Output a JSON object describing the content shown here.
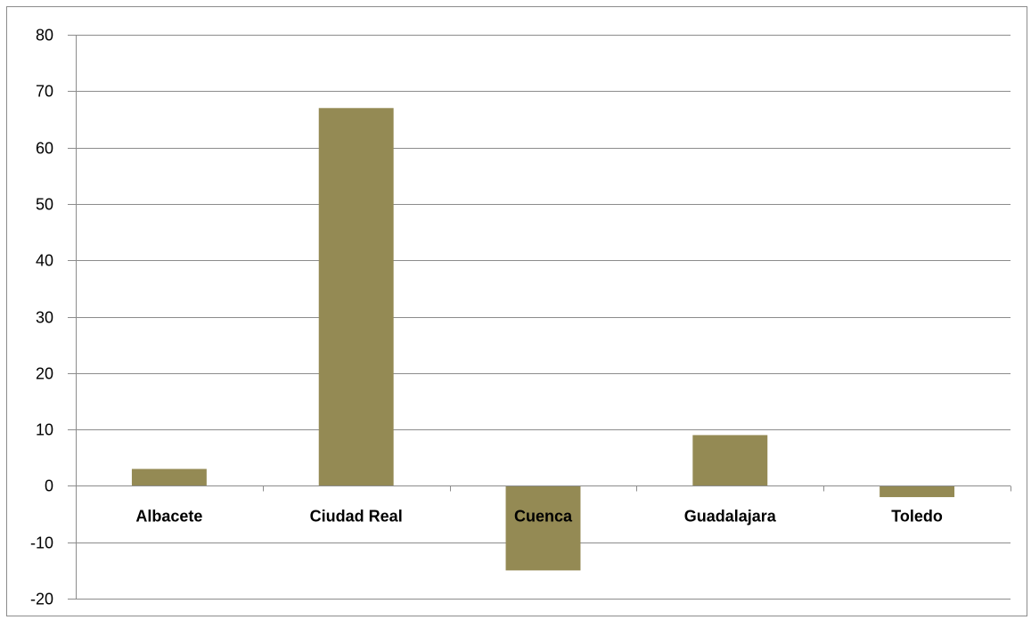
{
  "chart_data": {
    "type": "bar",
    "categories": [
      "Albacete",
      "Ciudad Real",
      "Cuenca",
      "Guadalajara",
      "Toledo"
    ],
    "values": [
      3,
      67,
      -15,
      9,
      -2
    ],
    "ylim": [
      -20,
      80
    ],
    "yticks": [
      80,
      70,
      60,
      50,
      40,
      30,
      20,
      10,
      0,
      -10,
      -20
    ],
    "grid": true,
    "legend": "none",
    "title": "",
    "xlabel": "",
    "ylabel": ""
  },
  "colors": {
    "bar": "#948A54",
    "grid": "#8c8c8c",
    "axis": "#8c8c8c"
  }
}
